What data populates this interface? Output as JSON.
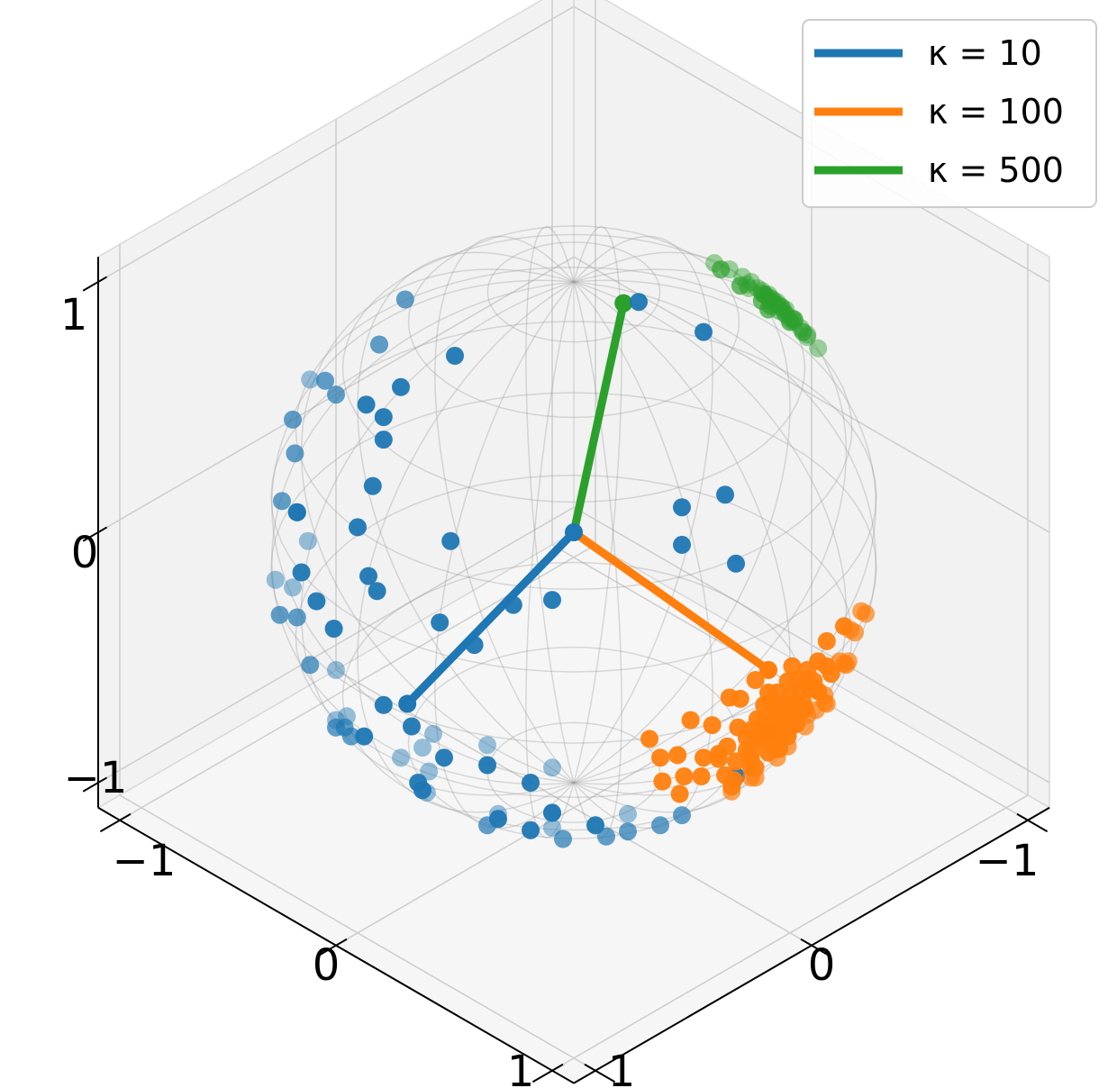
{
  "chart_data": {
    "type": "scatter",
    "projection": "3d",
    "title": "",
    "xlabel": "",
    "ylabel": "",
    "zlabel": "",
    "xlim": [
      -1.1,
      1.1
    ],
    "ylim": [
      -1.1,
      1.1
    ],
    "zlim": [
      -1.1,
      1.1
    ],
    "x_ticks": [
      "−1",
      "0",
      "1"
    ],
    "y_ticks": [
      "−1",
      "0",
      "1"
    ],
    "z_ticks": [
      "1",
      "0",
      "−1"
    ],
    "grid": true,
    "unit_sphere_wireframe": true,
    "legend": {
      "placement": "top-right",
      "entries": [
        "κ = 10",
        "κ = 100",
        "κ = 500"
      ]
    },
    "series": [
      {
        "name": "κ = 10",
        "color": "#1f77b4",
        "mean_direction": [
          0.72,
          -0.05,
          -0.35
        ],
        "points": [
          [
            0.91,
            -0.35,
            0.12
          ],
          [
            0.84,
            -0.44,
            0.28
          ],
          [
            0.71,
            -0.58,
            0.38
          ],
          [
            0.6,
            -0.2,
            0.78
          ],
          [
            0.47,
            -0.43,
            0.77
          ],
          [
            0.55,
            -0.6,
            0.58
          ],
          [
            0.96,
            0.05,
            0.27
          ],
          [
            0.95,
            0.0,
            0.3
          ],
          [
            0.9,
            -0.1,
            0.42
          ],
          [
            0.88,
            -0.4,
            -0.1
          ],
          [
            0.81,
            -0.25,
            -0.5
          ],
          [
            0.84,
            0.12,
            -0.52
          ],
          [
            0.8,
            0.1,
            -0.58
          ],
          [
            0.78,
            -0.32,
            -0.55
          ],
          [
            0.7,
            -0.4,
            -0.6
          ],
          [
            0.68,
            -0.2,
            0.7
          ],
          [
            0.66,
            -0.3,
            0.69
          ],
          [
            0.6,
            -0.45,
            -0.66
          ],
          [
            0.58,
            -0.1,
            -0.8
          ],
          [
            0.55,
            0.15,
            -0.82
          ],
          [
            0.5,
            -0.3,
            -0.8
          ],
          [
            0.45,
            -0.1,
            0.88
          ],
          [
            0.42,
            -0.25,
            -0.87
          ],
          [
            0.4,
            0.05,
            -0.9
          ],
          [
            0.35,
            -0.35,
            -0.86
          ],
          [
            0.3,
            0.2,
            -0.93
          ],
          [
            0.28,
            -0.5,
            0.82
          ],
          [
            0.25,
            -0.4,
            -0.88
          ],
          [
            0.2,
            0.1,
            -0.97
          ],
          [
            0.1,
            -0.3,
            -0.95
          ],
          [
            0.05,
            0.3,
            -0.95
          ],
          [
            0.0,
            -0.1,
            -0.99
          ],
          [
            0.98,
            0.1,
            -0.15
          ],
          [
            0.95,
            0.2,
            -0.2
          ],
          [
            0.92,
            -0.05,
            -0.38
          ],
          [
            0.9,
            0.3,
            -0.3
          ],
          [
            0.85,
            0.45,
            -0.28
          ],
          [
            0.75,
            0.55,
            -0.35
          ],
          [
            0.7,
            0.35,
            -0.62
          ],
          [
            0.65,
            0.55,
            -0.52
          ],
          [
            0.6,
            0.4,
            -0.69
          ],
          [
            0.5,
            0.6,
            -0.62
          ],
          [
            0.45,
            0.4,
            -0.8
          ],
          [
            0.35,
            0.6,
            -0.72
          ],
          [
            0.3,
            0.45,
            -0.84
          ],
          [
            0.2,
            0.7,
            -0.68
          ],
          [
            0.15,
            0.55,
            -0.82
          ],
          [
            0.1,
            0.85,
            -0.5
          ],
          [
            0.99,
            -0.12,
            0.05
          ],
          [
            0.97,
            -0.22,
            0.1
          ],
          [
            0.94,
            -0.28,
            -0.2
          ],
          [
            0.88,
            -0.15,
            -0.45
          ],
          [
            0.86,
            -0.42,
            0.3
          ],
          [
            0.83,
            -0.1,
            0.55
          ],
          [
            0.8,
            -0.55,
            0.25
          ],
          [
            0.76,
            -0.6,
            -0.25
          ],
          [
            0.73,
            -0.15,
            0.66
          ],
          [
            0.68,
            -0.7,
            -0.2
          ],
          [
            0.62,
            -0.48,
            0.62
          ],
          [
            0.58,
            -0.72,
            0.38
          ],
          [
            0.52,
            -0.78,
            -0.35
          ],
          [
            0.48,
            -0.62,
            -0.62
          ],
          [
            0.4,
            -0.82,
            0.4
          ],
          [
            0.35,
            -0.88,
            -0.3
          ],
          [
            0.92,
            0.3,
            0.25
          ],
          [
            0.88,
            0.42,
            0.2
          ],
          [
            0.82,
            0.25,
            0.5
          ],
          [
            0.78,
            0.5,
            0.35
          ],
          [
            0.7,
            0.6,
            0.38
          ],
          [
            0.3,
            0.8,
            0.5
          ],
          [
            0.25,
            0.75,
            0.6
          ],
          [
            0.15,
            0.9,
            0.4
          ],
          [
            0.1,
            0.8,
            0.6
          ],
          [
            -0.1,
            0.2,
            0.97
          ],
          [
            -0.2,
            0.4,
            0.9
          ],
          [
            0.05,
            0.95,
            -0.3
          ]
        ]
      },
      {
        "name": "κ = 100",
        "color": "#ff7f0e",
        "mean_direction": [
          0.0,
          0.9,
          -0.1
        ],
        "points": [
          [
            -0.06,
            0.96,
            -0.25
          ],
          [
            -0.04,
            0.97,
            -0.22
          ],
          [
            0.0,
            0.98,
            -0.2
          ],
          [
            0.03,
            0.97,
            -0.21
          ],
          [
            -0.08,
            0.95,
            -0.28
          ],
          [
            -0.1,
            0.96,
            -0.25
          ],
          [
            0.05,
            0.98,
            -0.18
          ],
          [
            0.08,
            0.97,
            -0.22
          ],
          [
            -0.02,
            0.95,
            -0.3
          ],
          [
            0.02,
            0.96,
            -0.28
          ],
          [
            -0.12,
            0.97,
            -0.2
          ],
          [
            0.1,
            0.96,
            -0.25
          ],
          [
            -0.05,
            0.99,
            -0.12
          ],
          [
            0.0,
            0.99,
            -0.1
          ],
          [
            0.05,
            0.99,
            -0.12
          ],
          [
            -0.15,
            0.96,
            -0.22
          ],
          [
            0.12,
            0.97,
            -0.2
          ],
          [
            -0.07,
            0.93,
            -0.35
          ],
          [
            0.07,
            0.94,
            -0.33
          ],
          [
            -0.03,
            0.92,
            -0.38
          ],
          [
            0.03,
            0.93,
            -0.36
          ],
          [
            -0.18,
            0.95,
            -0.25
          ],
          [
            0.15,
            0.95,
            -0.27
          ],
          [
            -0.1,
            0.98,
            -0.15
          ],
          [
            0.1,
            0.98,
            -0.15
          ],
          [
            -0.2,
            0.97,
            -0.15
          ],
          [
            0.2,
            0.96,
            -0.2
          ],
          [
            0.0,
            0.97,
            -0.25
          ],
          [
            -0.05,
            0.97,
            -0.24
          ],
          [
            0.04,
            0.95,
            -0.3
          ],
          [
            -0.13,
            0.94,
            -0.3
          ],
          [
            0.13,
            0.93,
            -0.34
          ],
          [
            -0.02,
            0.98,
            -0.17
          ],
          [
            0.06,
            0.96,
            -0.26
          ],
          [
            -0.09,
            0.99,
            -0.1
          ],
          [
            0.09,
            0.99,
            -0.1
          ],
          [
            -0.25,
            0.94,
            -0.22
          ],
          [
            0.22,
            0.93,
            -0.28
          ],
          [
            -0.16,
            0.92,
            -0.35
          ],
          [
            0.16,
            0.91,
            -0.38
          ],
          [
            0.0,
            0.9,
            -0.43
          ],
          [
            -0.06,
            0.89,
            -0.45
          ],
          [
            0.06,
            0.88,
            -0.47
          ],
          [
            -0.3,
            0.93,
            -0.2
          ],
          [
            0.25,
            0.92,
            -0.3
          ],
          [
            -0.22,
            0.9,
            -0.37
          ],
          [
            0.02,
            0.86,
            -0.5
          ],
          [
            -0.12,
            0.87,
            -0.48
          ],
          [
            0.12,
            0.86,
            -0.5
          ],
          [
            -0.35,
            0.9,
            -0.25
          ],
          [
            0.3,
            0.9,
            -0.3
          ],
          [
            -0.28,
            0.88,
            -0.38
          ],
          [
            0.28,
            0.87,
            -0.4
          ],
          [
            -0.1,
            0.84,
            -0.53
          ],
          [
            0.1,
            0.83,
            -0.55
          ],
          [
            0.0,
            0.82,
            -0.57
          ],
          [
            -0.38,
            0.88,
            -0.28
          ],
          [
            0.35,
            0.86,
            -0.37
          ],
          [
            -0.05,
            0.79,
            -0.61
          ],
          [
            0.05,
            0.78,
            -0.62
          ],
          [
            -0.2,
            0.97,
            -0.05
          ],
          [
            0.2,
            0.97,
            -0.08
          ],
          [
            -0.3,
            0.95,
            -0.05
          ],
          [
            0.3,
            0.94,
            -0.15
          ],
          [
            -0.4,
            0.9,
            -0.15
          ],
          [
            0.4,
            0.88,
            -0.25
          ],
          [
            -0.02,
            0.99,
            -0.05
          ],
          [
            0.15,
            0.99,
            -0.02
          ],
          [
            -0.15,
            0.98,
            -0.1
          ],
          [
            0.25,
            0.97,
            -0.05
          ],
          [
            -0.35,
            0.93,
            -0.1
          ],
          [
            0.38,
            0.92,
            -0.1
          ],
          [
            -0.45,
            0.88,
            -0.1
          ],
          [
            0.45,
            0.85,
            -0.25
          ],
          [
            0.5,
            0.85,
            -0.15
          ],
          [
            -0.5,
            0.85,
            -0.15
          ],
          [
            -0.08,
            0.91,
            -0.4
          ],
          [
            0.08,
            0.9,
            -0.42
          ],
          [
            -0.18,
            0.89,
            -0.42
          ],
          [
            0.18,
            0.88,
            -0.44
          ],
          [
            -0.42,
            0.85,
            -0.3
          ],
          [
            0.42,
            0.83,
            -0.37
          ],
          [
            -0.33,
            0.84,
            -0.43
          ],
          [
            0.33,
            0.82,
            -0.47
          ],
          [
            0.0,
            0.97,
            -0.24
          ],
          [
            -0.04,
            0.96,
            -0.27
          ],
          [
            0.04,
            0.98,
            -0.2
          ],
          [
            -0.1,
            0.95,
            -0.29
          ],
          [
            0.1,
            0.95,
            -0.29
          ],
          [
            -0.01,
            0.94,
            -0.33
          ],
          [
            0.01,
            0.96,
            -0.27
          ],
          [
            -0.14,
            0.97,
            -0.18
          ],
          [
            0.14,
            0.96,
            -0.24
          ],
          [
            -0.07,
            0.98,
            -0.18
          ],
          [
            0.07,
            0.98,
            -0.16
          ],
          [
            -0.24,
            0.92,
            -0.31
          ],
          [
            0.24,
            0.91,
            -0.33
          ],
          [
            -0.1,
            0.93,
            -0.35
          ],
          [
            0.0,
            0.93,
            -0.37
          ],
          [
            0.1,
            0.92,
            -0.37
          ]
        ]
      },
      {
        "name": "κ = 500",
        "color": "#2ca02c",
        "mean_direction": [
          -0.15,
          0.08,
          0.88
        ],
        "points": [
          [
            -0.72,
            0.26,
            0.64
          ],
          [
            -0.75,
            0.12,
            0.65
          ],
          [
            -0.76,
            0.18,
            0.62
          ],
          [
            -0.72,
            0.22,
            0.66
          ],
          [
            -0.78,
            0.2,
            0.6
          ],
          [
            -0.7,
            0.18,
            0.69
          ],
          [
            -0.74,
            0.28,
            0.61
          ],
          [
            -0.71,
            0.14,
            0.69
          ],
          [
            -0.77,
            0.24,
            0.59
          ],
          [
            -0.73,
            0.19,
            0.66
          ],
          [
            -0.69,
            0.23,
            0.69
          ],
          [
            -0.75,
            0.16,
            0.64
          ],
          [
            -0.79,
            0.15,
            0.6
          ],
          [
            -0.68,
            0.27,
            0.68
          ],
          [
            -0.72,
            0.1,
            0.69
          ],
          [
            -0.76,
            0.3,
            0.57
          ],
          [
            -0.7,
            0.3,
            0.65
          ],
          [
            -0.74,
            0.22,
            0.64
          ],
          [
            -0.77,
            0.13,
            0.63
          ],
          [
            -0.71,
            0.2,
            0.67
          ],
          [
            -0.8,
            0.22,
            0.56
          ],
          [
            -0.67,
            0.2,
            0.72
          ],
          [
            -0.73,
            0.33,
            0.6
          ],
          [
            -0.78,
            0.27,
            0.56
          ],
          [
            -0.66,
            0.14,
            0.73
          ],
          [
            -0.81,
            0.16,
            0.56
          ],
          [
            -0.7,
            0.08,
            0.71
          ],
          [
            -0.75,
            0.21,
            0.63
          ],
          [
            -0.72,
            0.17,
            0.67
          ],
          [
            -0.68,
            0.32,
            0.66
          ],
          [
            -0.82,
            0.2,
            0.54
          ],
          [
            -0.65,
            0.26,
            0.71
          ],
          [
            -0.74,
            0.34,
            0.58
          ],
          [
            -0.79,
            0.09,
            0.6
          ],
          [
            -0.63,
            0.18,
            0.75
          ],
          [
            -0.6,
            0.05,
            0.8
          ],
          [
            -0.58,
            0.1,
            0.81
          ],
          [
            -0.62,
            0.25,
            0.74
          ],
          [
            -0.83,
            0.3,
            0.47
          ],
          [
            -0.85,
            0.13,
            0.51
          ],
          [
            -0.66,
            0.06,
            0.75
          ],
          [
            -0.6,
            0.3,
            0.74
          ],
          [
            -0.57,
            0.2,
            0.8
          ],
          [
            -0.84,
            0.24,
            0.49
          ]
        ]
      }
    ]
  }
}
